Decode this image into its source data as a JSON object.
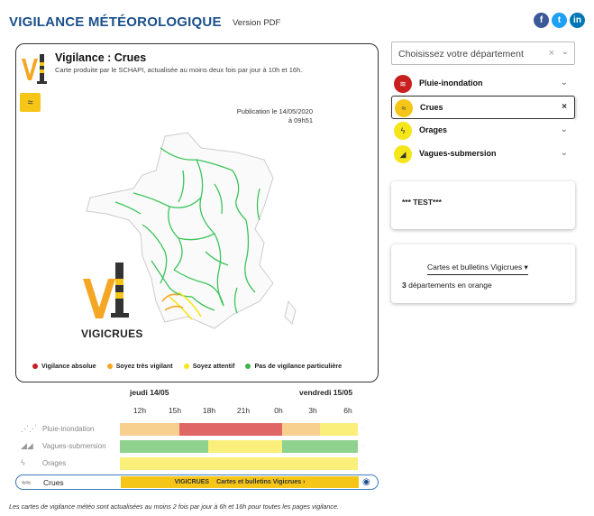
{
  "header": {
    "title": "VIGILANCE MÉTÉOROLOGIQUE",
    "version_pdf": "Version PDF",
    "social": [
      "f",
      "t",
      "in"
    ]
  },
  "map_card": {
    "title": "Vigilance : Crues",
    "subtitle": "Carte produite par le SCHAPI, actualisée au moins deux fois par jour à 10h et 16h.",
    "publication_line1": "Publication le 14/05/2020",
    "publication_line2": "à 09h51",
    "brand": "VIGICRUES",
    "legend": [
      {
        "label": "Vigilance absolue",
        "color": "#c81e1e"
      },
      {
        "label": "Soyez très vigilant",
        "color": "#f5a623"
      },
      {
        "label": "Soyez attentif",
        "color": "#f5e61a"
      },
      {
        "label": "Pas de vigilance particulière",
        "color": "#3cb44b"
      }
    ]
  },
  "timeline": {
    "day1": "jeudi 14/05",
    "day2": "vendredi 15/05",
    "hours": [
      "12h",
      "15h",
      "18h",
      "21h",
      "0h",
      "3h",
      "6h"
    ],
    "rows": [
      {
        "label": "Pluie-inondation",
        "segments": [
          {
            "from": 0,
            "to": 0.25,
            "color": "#f7cf8f"
          },
          {
            "from": 0.25,
            "to": 0.68,
            "color": "#e06666"
          },
          {
            "from": 0.68,
            "to": 0.84,
            "color": "#f7cf8f"
          },
          {
            "from": 0.84,
            "to": 1,
            "color": "#f9ef7a"
          }
        ]
      },
      {
        "label": "Vagues-submersion",
        "segments": [
          {
            "from": 0,
            "to": 0.37,
            "color": "#8fd18f"
          },
          {
            "from": 0.37,
            "to": 0.68,
            "color": "#f9ef7a"
          },
          {
            "from": 0.68,
            "to": 1,
            "color": "#8fd18f"
          }
        ]
      },
      {
        "label": "Orages",
        "segments": [
          {
            "from": 0,
            "to": 1,
            "color": "#f9ef7a"
          }
        ]
      }
    ],
    "crues_row": {
      "label": "Crues",
      "brand": "VIGICRUES",
      "link": "Cartes et bulletins Vigicrues ›"
    }
  },
  "footnote": "Les cartes de vigilance météo sont actualisées au moins 2 fois par jour à 6h et 16h pour toutes les pages vigilance.",
  "sidebar": {
    "select_placeholder": "Choisissez votre département",
    "items": [
      {
        "label": "Pluie-inondation",
        "icon_color": "#c81e1e",
        "selected": false
      },
      {
        "label": "Crues",
        "icon_color": "#f5c518",
        "selected": true
      },
      {
        "label": "Orages",
        "icon_color": "#f5e61a",
        "selected": false
      },
      {
        "label": "Vagues-submersion",
        "icon_color": "#f5e61a",
        "selected": false
      }
    ],
    "test_text": "*** TEST***",
    "vigicrues_link": "Cartes et bulletins Vigicrues ▾",
    "dept_count": "3",
    "dept_text": "départements en orange"
  }
}
